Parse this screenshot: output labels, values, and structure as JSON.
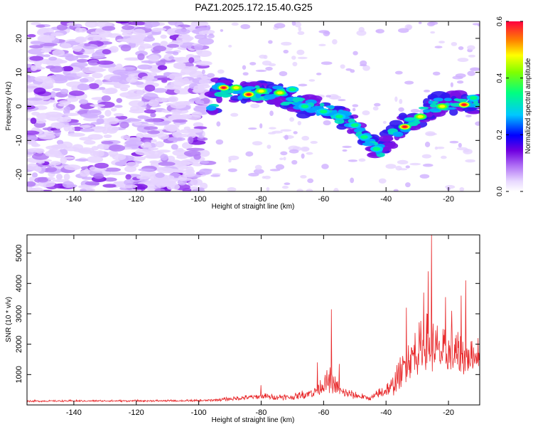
{
  "title": "PAZ1.2025.172.15.40.G25",
  "chart_data": [
    {
      "type": "heatmap",
      "xlabel": "Height of straight line (km)",
      "ylabel": "Frequency (Hz)",
      "xlim": [
        -155,
        -10
      ],
      "ylim": [
        -25,
        25
      ],
      "xticks": [
        -140,
        -120,
        -100,
        -80,
        -60,
        -40,
        -20
      ],
      "yticks": [
        -20,
        -10,
        0,
        10,
        20
      ],
      "colorbar": {
        "label": "Normalized spectral amplitude",
        "range": [
          0.0,
          0.6
        ],
        "ticks": [
          "0.0",
          "0.2",
          "0.4",
          "0.6"
        ]
      },
      "ridge": [
        {
          "x": -95,
          "y": 5
        },
        {
          "x": -85,
          "y": 4
        },
        {
          "x": -75,
          "y": 4
        },
        {
          "x": -70,
          "y": 1
        },
        {
          "x": -60,
          "y": -1
        },
        {
          "x": -52,
          "y": -4
        },
        {
          "x": -47,
          "y": -8
        },
        {
          "x": -42,
          "y": -13
        },
        {
          "x": -35,
          "y": -6
        },
        {
          "x": -30,
          "y": -3
        },
        {
          "x": -25,
          "y": 0
        },
        {
          "x": -20,
          "y": 1
        },
        {
          "x": -10,
          "y": 1
        }
      ],
      "hotspots": [
        {
          "x": -92,
          "y": 5.5,
          "amp": 0.6
        },
        {
          "x": -88,
          "y": 5.5,
          "amp": 0.45
        },
        {
          "x": -84,
          "y": 3.5,
          "amp": 0.55
        },
        {
          "x": -80,
          "y": 4.5,
          "amp": 0.5
        },
        {
          "x": -74,
          "y": 4.0,
          "amp": 0.4
        },
        {
          "x": -70,
          "y": 5.0,
          "amp": 0.3
        },
        {
          "x": -66,
          "y": 0.0,
          "amp": 0.3
        },
        {
          "x": -60,
          "y": -1.5,
          "amp": 0.3
        },
        {
          "x": -55,
          "y": -3.0,
          "amp": 0.35
        },
        {
          "x": -50,
          "y": -5.5,
          "amp": 0.3
        },
        {
          "x": -47,
          "y": -9.0,
          "amp": 0.3
        },
        {
          "x": -43,
          "y": -12.5,
          "amp": 0.3
        },
        {
          "x": -34,
          "y": -6.0,
          "amp": 0.6
        },
        {
          "x": -29,
          "y": -3.0,
          "amp": 0.45
        },
        {
          "x": -22,
          "y": 0.0,
          "amp": 0.4
        },
        {
          "x": -15,
          "y": 0.5,
          "amp": 0.6
        },
        {
          "x": -12,
          "y": 2.5,
          "amp": 0.3
        }
      ]
    },
    {
      "type": "line",
      "xlabel": "Height of straight line (km)",
      "ylabel": "SNR (10 * v/v)",
      "xlim": [
        -155,
        -10
      ],
      "ylim": [
        0,
        5600
      ],
      "xticks": [
        -140,
        -120,
        -100,
        -80,
        -60,
        -40,
        -20
      ],
      "yticks": [
        1000,
        2000,
        3000,
        4000,
        5000
      ],
      "series": [
        {
          "color": "#e8282a",
          "envelope": [
            {
              "x": -155,
              "base": 120,
              "noise": 60
            },
            {
              "x": -100,
              "base": 130,
              "noise": 70
            },
            {
              "x": -95,
              "base": 150,
              "noise": 90
            },
            {
              "x": -80,
              "base": 250,
              "noise": 220
            },
            {
              "x": -70,
              "base": 230,
              "noise": 200
            },
            {
              "x": -63,
              "base": 380,
              "noise": 400
            },
            {
              "x": -58,
              "base": 700,
              "noise": 900
            },
            {
              "x": -54,
              "base": 350,
              "noise": 400
            },
            {
              "x": -45,
              "base": 200,
              "noise": 160
            },
            {
              "x": -38,
              "base": 500,
              "noise": 700
            },
            {
              "x": -33,
              "base": 1300,
              "noise": 1400
            },
            {
              "x": -27,
              "base": 1800,
              "noise": 2000
            },
            {
              "x": -22,
              "base": 1500,
              "noise": 1600
            },
            {
              "x": -16,
              "base": 1400,
              "noise": 1500
            },
            {
              "x": -10,
              "base": 1500,
              "noise": 700
            }
          ],
          "peaks": [
            {
              "x": -57.5,
              "y": 3150
            },
            {
              "x": -62.0,
              "y": 1400
            },
            {
              "x": -55.0,
              "y": 1350
            },
            {
              "x": -80.0,
              "y": 650
            },
            {
              "x": -33.5,
              "y": 3200
            },
            {
              "x": -28.0,
              "y": 3700
            },
            {
              "x": -25.5,
              "y": 5600
            },
            {
              "x": -26.5,
              "y": 4400
            },
            {
              "x": -21.0,
              "y": 3550
            },
            {
              "x": -19.0,
              "y": 3100
            },
            {
              "x": -16.0,
              "y": 3600
            },
            {
              "x": -14.5,
              "y": 4100
            },
            {
              "x": -10.5,
              "y": 2200
            }
          ],
          "n_points": 1100
        }
      ]
    }
  ]
}
